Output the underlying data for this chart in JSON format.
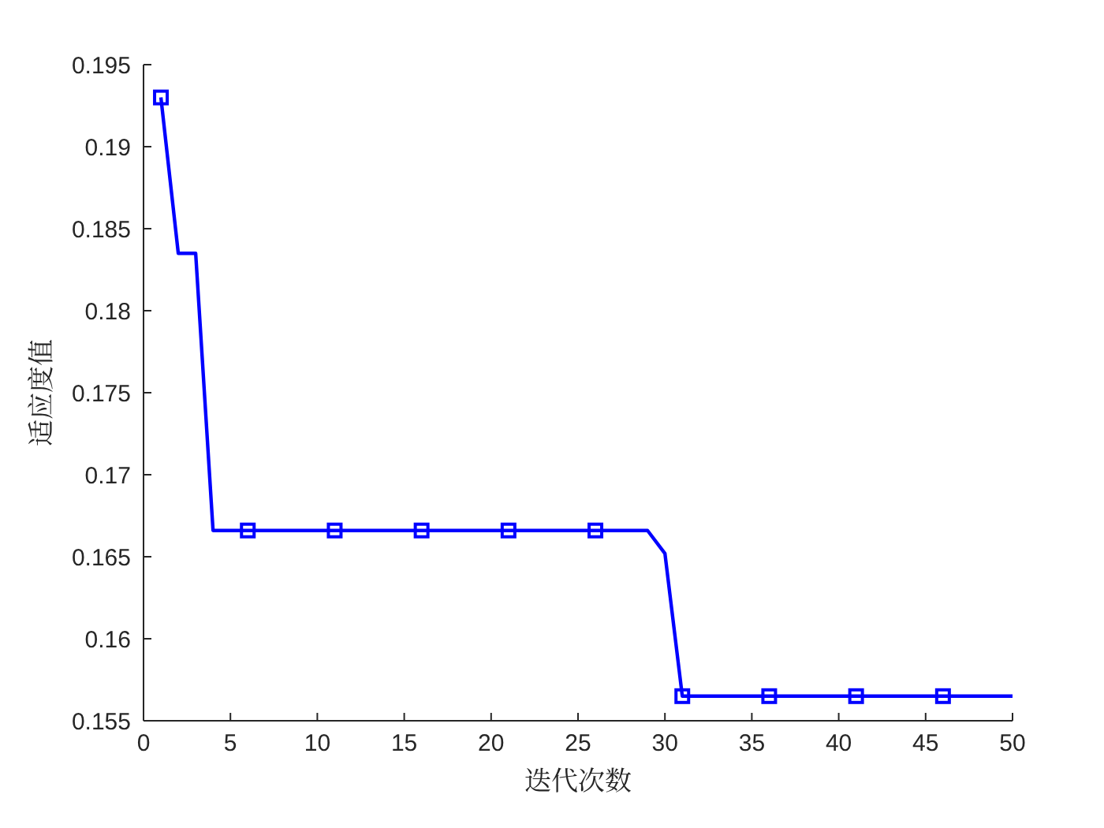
{
  "chart_data": {
    "type": "line",
    "xlabel": "迭代次数",
    "ylabel": "适应度值",
    "xlim": [
      0,
      50
    ],
    "xticks": [
      0,
      5,
      10,
      15,
      20,
      25,
      30,
      35,
      40,
      45,
      50
    ],
    "ylim": [
      0.155,
      0.195
    ],
    "yticks": [
      0.155,
      0.16,
      0.165,
      0.17,
      0.175,
      0.18,
      0.185,
      0.19,
      0.195
    ],
    "grid": false,
    "series": [
      {
        "marker": "none",
        "color": "#0000ff",
        "x": [
          1,
          2,
          3,
          4,
          5,
          6,
          7,
          8,
          9,
          10,
          11,
          12,
          13,
          14,
          15,
          16,
          17,
          18,
          19,
          20,
          21,
          22,
          23,
          24,
          25,
          26,
          27,
          28,
          29,
          30,
          31,
          32,
          33,
          34,
          35,
          36,
          37,
          38,
          39,
          40,
          41,
          42,
          43,
          44,
          45,
          46,
          47,
          48,
          49,
          50
        ],
        "values": [
          0.193,
          0.1835,
          0.1835,
          0.1666,
          0.1666,
          0.1666,
          0.1666,
          0.1666,
          0.1666,
          0.1666,
          0.1666,
          0.1666,
          0.1666,
          0.1666,
          0.1666,
          0.1666,
          0.1666,
          0.1666,
          0.1666,
          0.1666,
          0.1666,
          0.1666,
          0.1666,
          0.1666,
          0.1666,
          0.1666,
          0.1666,
          0.1666,
          0.1666,
          0.1652,
          0.1565,
          0.1565,
          0.1565,
          0.1565,
          0.1565,
          0.1565,
          0.1565,
          0.1565,
          0.1565,
          0.1565,
          0.1565,
          0.1565,
          0.1565,
          0.1565,
          0.1565,
          0.1565,
          0.1565,
          0.1565,
          0.1565,
          0.1565
        ]
      },
      {
        "type": "scatter",
        "marker": "square",
        "color": "#0000ff",
        "x": [
          1,
          6,
          11,
          16,
          21,
          26,
          31,
          36,
          41,
          46
        ],
        "values": [
          0.193,
          0.1666,
          0.1666,
          0.1666,
          0.1666,
          0.1666,
          0.1565,
          0.1565,
          0.1565,
          0.1565
        ]
      }
    ]
  }
}
